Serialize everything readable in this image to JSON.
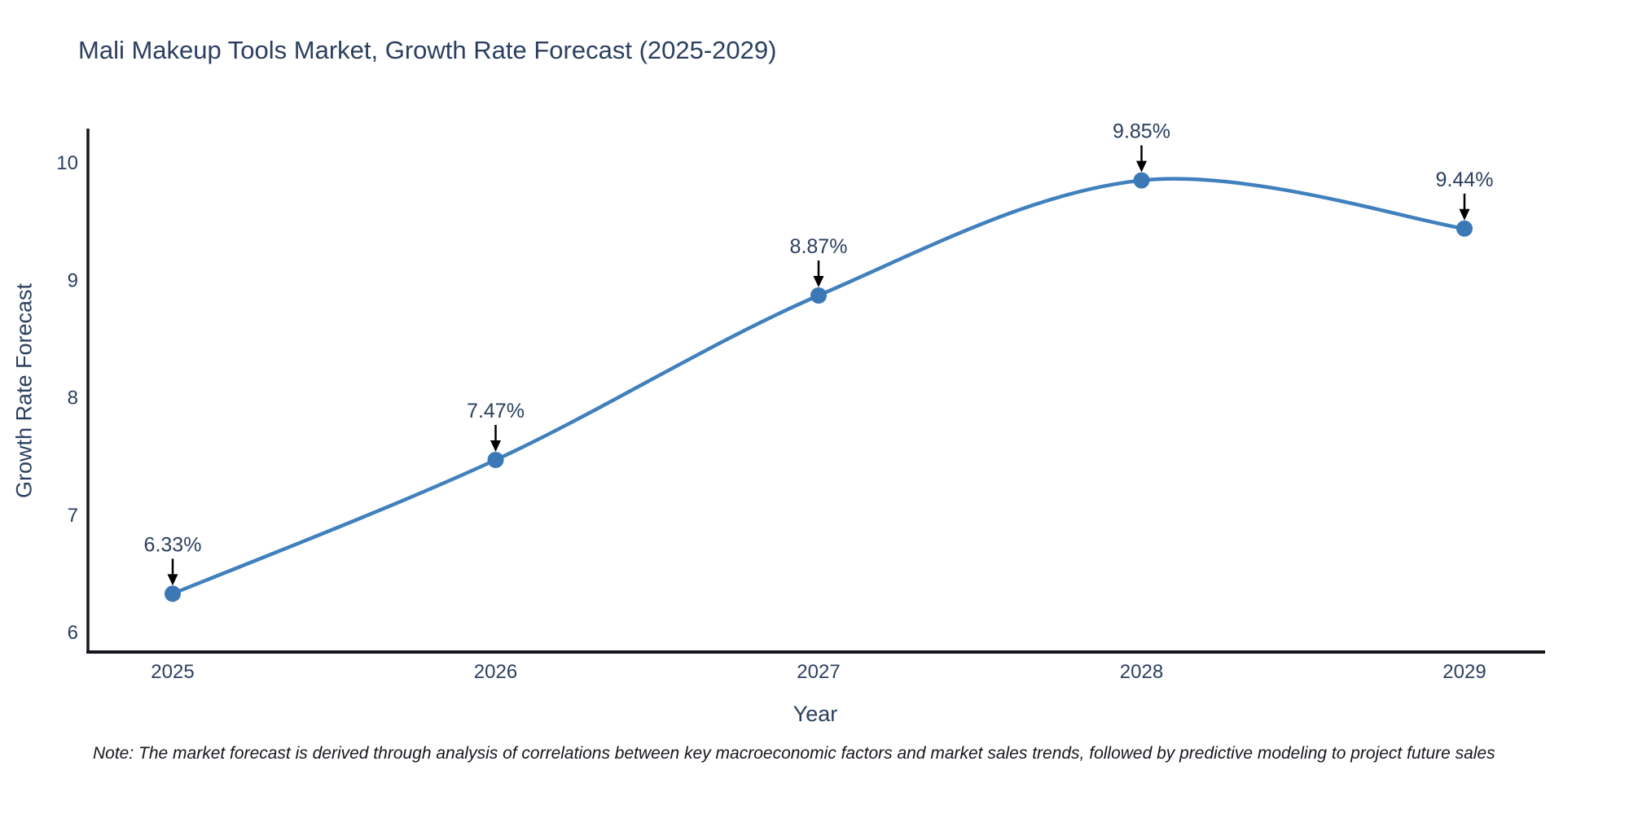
{
  "title": "Mali Makeup Tools Market, Growth Rate Forecast (2025-2029)",
  "note": "Note: The market forecast is derived through analysis of correlations between key macroeconomic factors and market sales trends, followed by predictive modeling to project future sales",
  "chart_data": {
    "type": "line",
    "curve": "spline",
    "markers": true,
    "grid": false,
    "legend": false,
    "title": "Mali Makeup Tools Market, Growth Rate Forecast (2025-2029)",
    "xlabel": "Year",
    "ylabel": "Growth Rate Forecast",
    "x": [
      2025,
      2026,
      2027,
      2028,
      2029
    ],
    "y": [
      6.33,
      7.47,
      8.87,
      9.85,
      9.44
    ],
    "point_labels": [
      "6.33%",
      "7.47%",
      "8.87%",
      "9.85%",
      "9.44%"
    ],
    "x_ticks": [
      "2025",
      "2026",
      "2027",
      "2028",
      "2029"
    ],
    "y_ticks": [
      "6",
      "7",
      "8",
      "9",
      "10"
    ],
    "y_tick_values": [
      6,
      7,
      8,
      9,
      10
    ],
    "xlim": [
      2024.73,
      2029.25
    ],
    "ylim": [
      5.82,
      10.29
    ],
    "colors": {
      "line": "#4080bd",
      "marker": "#3b78b5",
      "annotation_text": "#2a3f5f",
      "annotation_arrow": "#000000",
      "axis_line": "#16161d",
      "tick_text": "#2a3f5f",
      "title_text": "#2a3f5f"
    }
  }
}
